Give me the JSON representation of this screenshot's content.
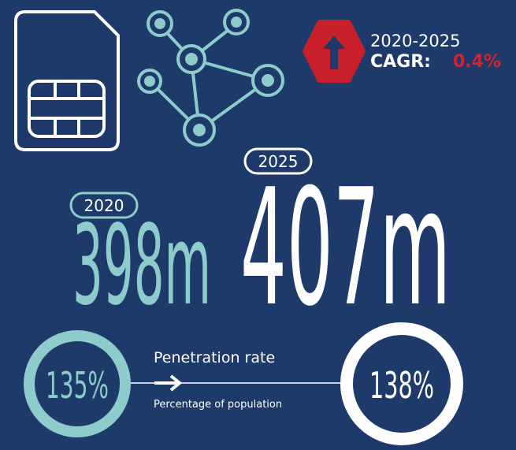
{
  "header": {
    "period": "2020-2025",
    "cagr_label": "CAGR:",
    "cagr_value": "0.4%"
  },
  "subscribers": {
    "start_year": "2020",
    "start_value": "398m",
    "end_year": "2025",
    "end_value": "407m"
  },
  "penetration": {
    "title": "Penetration rate",
    "subtitle": "Percentage of population",
    "start_value": "135%",
    "end_value": "138%"
  }
}
